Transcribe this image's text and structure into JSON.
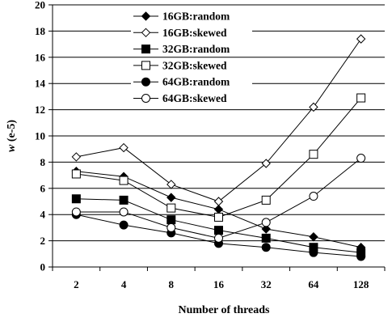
{
  "chart_data": {
    "type": "line",
    "xlabel": "Number of threads",
    "ylabel_italic": "w",
    "ylabel_rest": " (e-5)",
    "categories": [
      "2",
      "4",
      "8",
      "16",
      "32",
      "64",
      "128"
    ],
    "ylim": [
      0,
      20
    ],
    "yticks": [
      "0",
      "2",
      "4",
      "6",
      "8",
      "10",
      "12",
      "14",
      "16",
      "18",
      "20"
    ],
    "grid": "horizontal",
    "legend_position": "upper-left",
    "series": [
      {
        "name": "16GB:random",
        "marker": "diamond",
        "filled": true,
        "values": [
          7.3,
          6.9,
          5.3,
          4.4,
          2.9,
          2.3,
          1.5
        ]
      },
      {
        "name": "16GB:skewed",
        "marker": "diamond",
        "filled": false,
        "values": [
          8.4,
          9.1,
          6.3,
          5.0,
          7.9,
          12.2,
          17.4
        ]
      },
      {
        "name": "32GB:random",
        "marker": "square",
        "filled": true,
        "values": [
          5.2,
          5.1,
          3.6,
          2.8,
          2.2,
          1.5,
          1.1
        ]
      },
      {
        "name": "32GB:skewed",
        "marker": "square",
        "filled": false,
        "values": [
          7.1,
          6.6,
          4.5,
          3.8,
          5.1,
          8.6,
          12.9
        ]
      },
      {
        "name": "64GB:random",
        "marker": "circle",
        "filled": true,
        "values": [
          4.0,
          3.2,
          2.6,
          1.8,
          1.5,
          1.1,
          0.8
        ]
      },
      {
        "name": "64GB:skewed",
        "marker": "circle",
        "filled": false,
        "values": [
          4.2,
          4.2,
          3.0,
          2.2,
          3.4,
          5.4,
          8.3
        ]
      }
    ]
  }
}
